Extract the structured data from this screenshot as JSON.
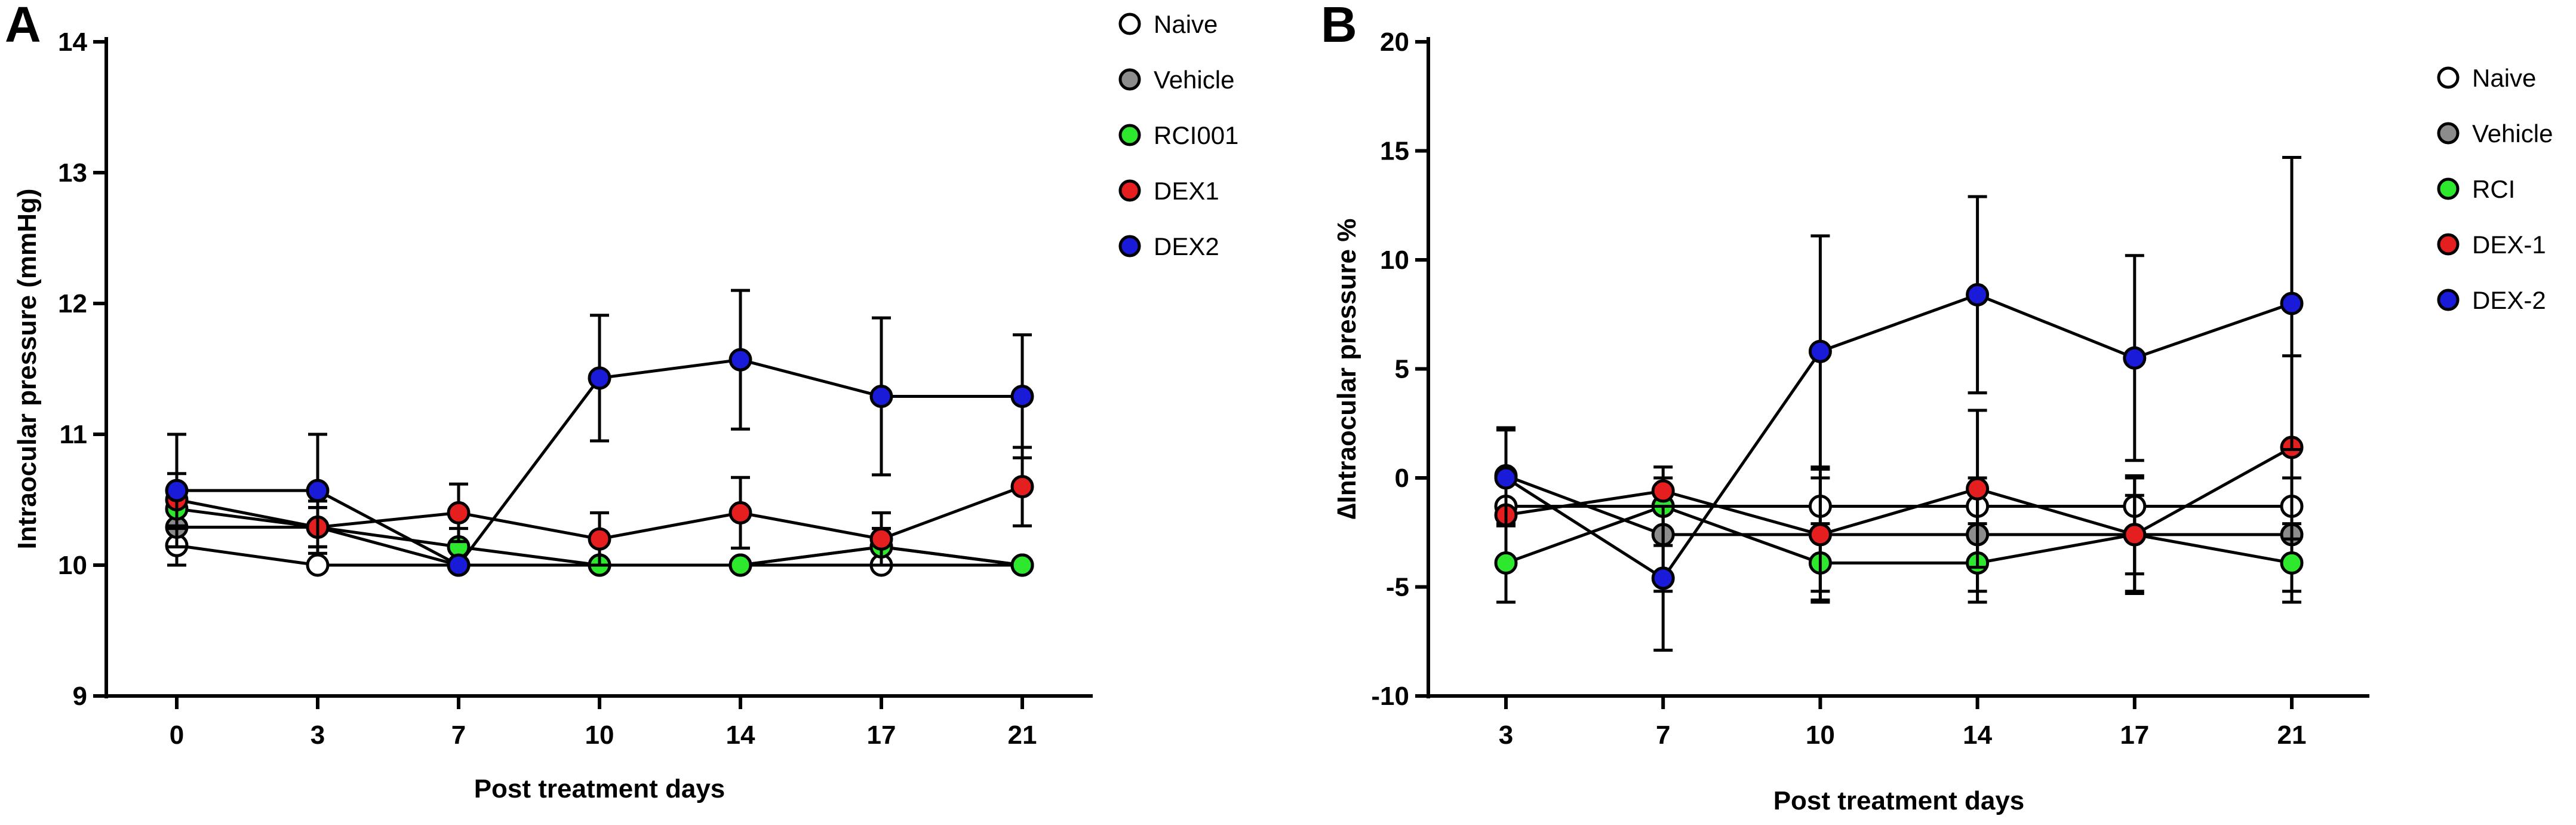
{
  "chart_data": [
    {
      "type": "line",
      "panel_label": "A",
      "title": "",
      "xlabel": "Post treatment days",
      "ylabel": "Intraocular pressure (mmHg)",
      "categories": [
        "0",
        "3",
        "7",
        "10",
        "14",
        "17",
        "21"
      ],
      "ylim": [
        9,
        14
      ],
      "yticks": [
        "9",
        "10",
        "11",
        "12",
        "13",
        "14"
      ],
      "grid": false,
      "legend_position": "right",
      "series": [
        {
          "name": "Naive",
          "color": "#ffffff",
          "values": [
            10.15,
            10.0,
            10.0,
            10.0,
            10.0,
            10.0,
            10.0
          ],
          "errors": [
            0.15,
            0,
            0,
            0,
            0,
            0,
            0
          ]
        },
        {
          "name": "Vehicle",
          "color": "#8c8c8c",
          "values": [
            10.29,
            10.29,
            10.0,
            10.0,
            10.0,
            10.14,
            10.0
          ],
          "errors": [
            0.15,
            0.15,
            0,
            0,
            0,
            0.14,
            0
          ]
        },
        {
          "name": "RCI001",
          "color": "#2ee82e",
          "values": [
            10.43,
            10.29,
            10.14,
            10.0,
            10.0,
            10.14,
            10.0
          ],
          "errors": [
            0.15,
            0.15,
            0.14,
            0,
            0,
            0.14,
            0
          ]
        },
        {
          "name": "DEX1",
          "color": "#e51f1f",
          "values": [
            10.5,
            10.29,
            10.4,
            10.2,
            10.4,
            10.2,
            10.6
          ],
          "errors": [
            0.2,
            0.2,
            0.22,
            0.2,
            0.27,
            0.2,
            0.3
          ]
        },
        {
          "name": "DEX2",
          "color": "#1a1ad9",
          "values": [
            10.57,
            10.57,
            10.0,
            11.43,
            11.57,
            11.29,
            11.29
          ],
          "errors": [
            0.43,
            0.43,
            0,
            0.48,
            0.53,
            0.6,
            0.47
          ]
        }
      ]
    },
    {
      "type": "line",
      "panel_label": "B",
      "title": "",
      "xlabel": "Post treatment days",
      "ylabel": "∆Intraocular pressure %",
      "categories": [
        "3",
        "7",
        "10",
        "14",
        "17",
        "21"
      ],
      "ylim": [
        -10,
        20
      ],
      "yticks": [
        "-10",
        "-5",
        "0",
        "5",
        "10",
        "15",
        "20"
      ],
      "grid": false,
      "legend_position": "right",
      "series": [
        {
          "name": "Naive",
          "color": "#ffffff",
          "values": [
            -1.3,
            -1.3,
            -1.3,
            -1.3,
            -1.3,
            -1.3
          ],
          "errors": [
            0,
            0,
            0,
            0,
            0,
            0
          ]
        },
        {
          "name": "Vehicle",
          "color": "#8c8c8c",
          "values": [
            0.1,
            -2.6,
            -2.6,
            -2.6,
            -2.6,
            -2.6
          ],
          "errors": [
            2.2,
            2.6,
            2.6,
            2.6,
            2.6,
            2.6
          ]
        },
        {
          "name": "RCI",
          "color": "#2ee82e",
          "values": [
            -3.9,
            -1.3,
            -3.9,
            -3.9,
            -2.6,
            -3.9
          ],
          "errors": [
            1.8,
            1.8,
            1.8,
            1.8,
            1.8,
            1.8
          ]
        },
        {
          "name": "DEX-1",
          "color": "#e51f1f",
          "values": [
            -1.7,
            -0.6,
            -2.6,
            -0.5,
            -2.6,
            1.4
          ],
          "errors": [
            0,
            0,
            3.0,
            3.6,
            2.7,
            4.2
          ]
        },
        {
          "name": "DEX-2",
          "color": "#1a1ad9",
          "values": [
            0.0,
            -4.6,
            5.8,
            8.4,
            5.5,
            8.0
          ],
          "errors": [
            2.2,
            3.3,
            5.3,
            4.5,
            4.7,
            6.7
          ]
        }
      ]
    }
  ]
}
